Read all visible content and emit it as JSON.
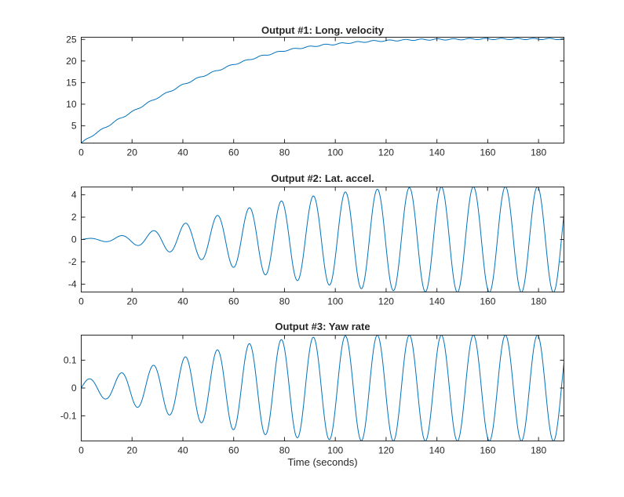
{
  "colors": {
    "axis": "#262626",
    "series": "#0072bd",
    "background": "#ffffff"
  },
  "chart_data": [
    {
      "type": "line",
      "title": "Output #1: Long. velocity",
      "xlabel": "",
      "ylabel": "",
      "xlim": [
        0,
        190
      ],
      "ylim": [
        1,
        25.5
      ],
      "xticks": [
        0,
        20,
        40,
        60,
        80,
        100,
        120,
        140,
        160,
        180
      ],
      "yticks": [
        5,
        10,
        15,
        20,
        25
      ],
      "ytick_labels": [
        "5",
        "10",
        "15",
        "20",
        "25"
      ],
      "grid": false,
      "series": [
        {
          "x": [
            0,
            5,
            10,
            15,
            20,
            25,
            30,
            35,
            40,
            45,
            50,
            55,
            60,
            65,
            70,
            75,
            80,
            85,
            90,
            95,
            100,
            105,
            110,
            115,
            120,
            125,
            130,
            135,
            140,
            145,
            150,
            155,
            160,
            165,
            170,
            175,
            180,
            185,
            190
          ],
          "values": [
            1.0,
            3.0,
            4.8,
            6.6,
            8.2,
            9.9,
            11.5,
            13.0,
            14.5,
            15.8,
            17.0,
            18.1,
            19.2,
            20.1,
            21.0,
            21.7,
            22.4,
            22.9,
            23.3,
            23.7,
            23.9,
            24.2,
            24.4,
            24.6,
            24.7,
            24.8,
            24.9,
            24.95,
            25.0,
            25.0,
            25.05,
            25.1,
            25.1,
            25.1,
            25.1,
            25.1,
            25.1,
            25.1,
            25.1
          ]
        }
      ]
    },
    {
      "type": "line",
      "title": "Output #2: Lat. accel.",
      "xlabel": "",
      "ylabel": "",
      "xlim": [
        0,
        190
      ],
      "ylim": [
        -4.7,
        4.7
      ],
      "xticks": [
        0,
        20,
        40,
        60,
        80,
        100,
        120,
        140,
        160,
        180
      ],
      "yticks": [
        -4,
        -2,
        0,
        2,
        4
      ],
      "ytick_labels": [
        "-4",
        "-2",
        "0",
        "2",
        "4"
      ],
      "grid": false,
      "oscillation_period_s": 12.6,
      "series": [
        {
          "x": [
            0,
            10,
            20,
            30,
            40,
            50,
            60,
            70,
            80,
            90,
            100,
            110,
            120,
            130,
            140,
            150,
            160,
            170,
            180,
            190
          ],
          "amplitude": [
            0.05,
            0.2,
            0.45,
            0.85,
            1.4,
            1.95,
            2.5,
            3.05,
            3.5,
            3.85,
            4.15,
            4.4,
            4.55,
            4.65,
            4.7,
            4.72,
            4.72,
            4.72,
            4.72,
            4.72
          ]
        }
      ]
    },
    {
      "type": "line",
      "title": "Output #3: Yaw rate",
      "xlabel": "Time (seconds)",
      "ylabel": "",
      "xlim": [
        0,
        190
      ],
      "ylim": [
        -0.19,
        0.19
      ],
      "xticks": [
        0,
        20,
        40,
        60,
        80,
        100,
        120,
        140,
        160,
        180
      ],
      "yticks": [
        -0.1,
        0,
        0.1
      ],
      "ytick_labels": [
        "-0.1",
        "0",
        "0.1"
      ],
      "grid": false,
      "oscillation_period_s": 12.6,
      "series": [
        {
          "x": [
            0,
            10,
            20,
            30,
            40,
            50,
            60,
            70,
            80,
            90,
            100,
            110,
            120,
            130,
            140,
            150,
            160,
            170,
            180,
            190
          ],
          "amplitude": [
            0.03,
            0.04,
            0.065,
            0.085,
            0.11,
            0.13,
            0.15,
            0.165,
            0.175,
            0.182,
            0.186,
            0.189,
            0.19,
            0.19,
            0.19,
            0.19,
            0.19,
            0.19,
            0.19,
            0.19
          ]
        }
      ]
    }
  ]
}
